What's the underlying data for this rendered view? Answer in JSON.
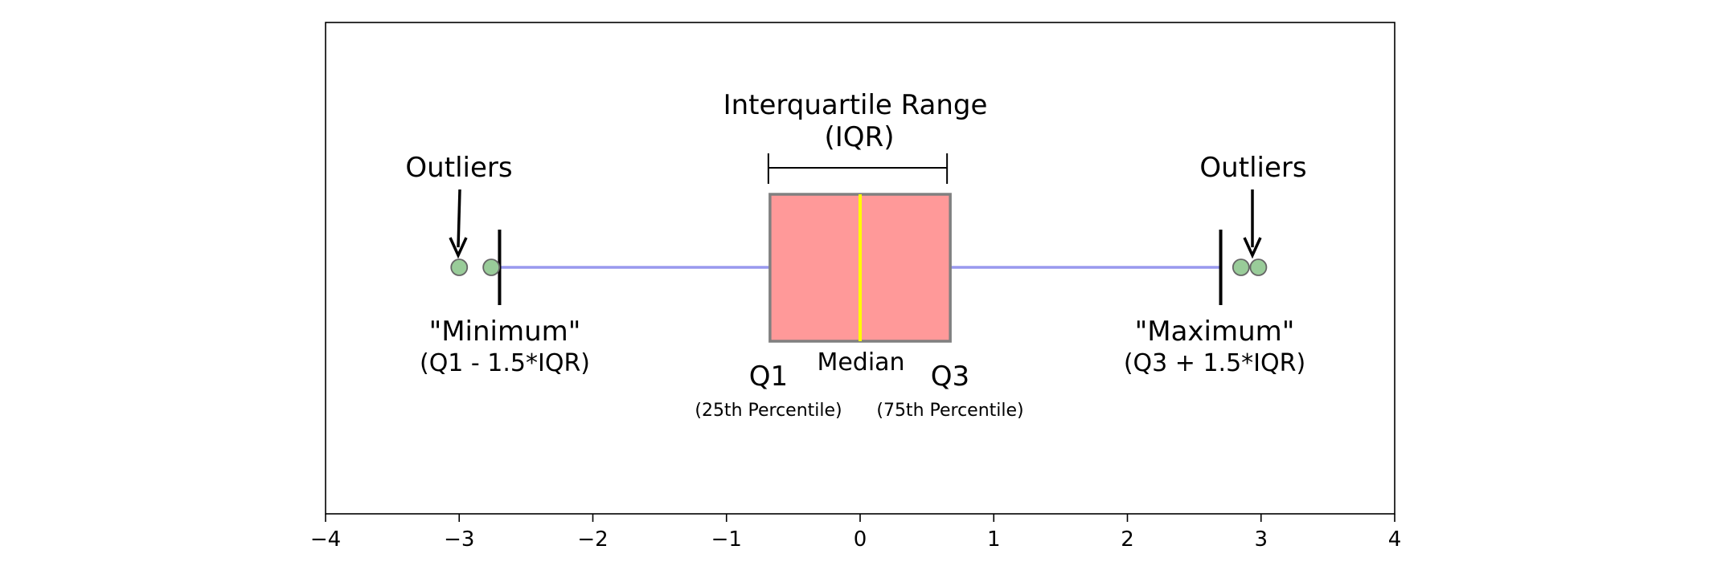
{
  "chart_data": {
    "type": "box",
    "title": "",
    "xlabel": "",
    "ylabel": "",
    "xlim": [
      -4,
      4
    ],
    "ticks": [
      {
        "value": -4,
        "label": "−4"
      },
      {
        "value": -3,
        "label": "−3"
      },
      {
        "value": -2,
        "label": "−2"
      },
      {
        "value": -1,
        "label": "−1"
      },
      {
        "value": 0,
        "label": "0"
      },
      {
        "value": 1,
        "label": "1"
      },
      {
        "value": 2,
        "label": "2"
      },
      {
        "value": 3,
        "label": "3"
      },
      {
        "value": 4,
        "label": "4"
      }
    ],
    "box": {
      "q1": -0.6745,
      "median": 0,
      "q3": 0.6745,
      "whisker_low": -2.698,
      "whisker_high": 2.698,
      "outliers": [
        -3.0,
        -2.76,
        2.85,
        2.98
      ]
    },
    "colors": {
      "box_fill": "#ff9999",
      "box_edge": "#808080",
      "median_line": "#ffff00",
      "whisker_line": "#9999ee",
      "outlier_fill": "#99cc99",
      "outlier_edge": "#666666"
    },
    "annotations": {
      "iqr_title": "Interquartile Range",
      "iqr_subtitle": "(IQR)",
      "outliers_left": "Outliers",
      "outliers_right": "Outliers",
      "minimum_label": "\"Minimum\"",
      "minimum_formula": "(Q1 - 1.5*IQR)",
      "maximum_label": "\"Maximum\"",
      "maximum_formula": "(Q3 + 1.5*IQR)",
      "q1_label": "Q1",
      "q1_desc": "(25th Percentile)",
      "q3_label": "Q3",
      "q3_desc": "(75th Percentile)",
      "median_label": "Median"
    }
  }
}
